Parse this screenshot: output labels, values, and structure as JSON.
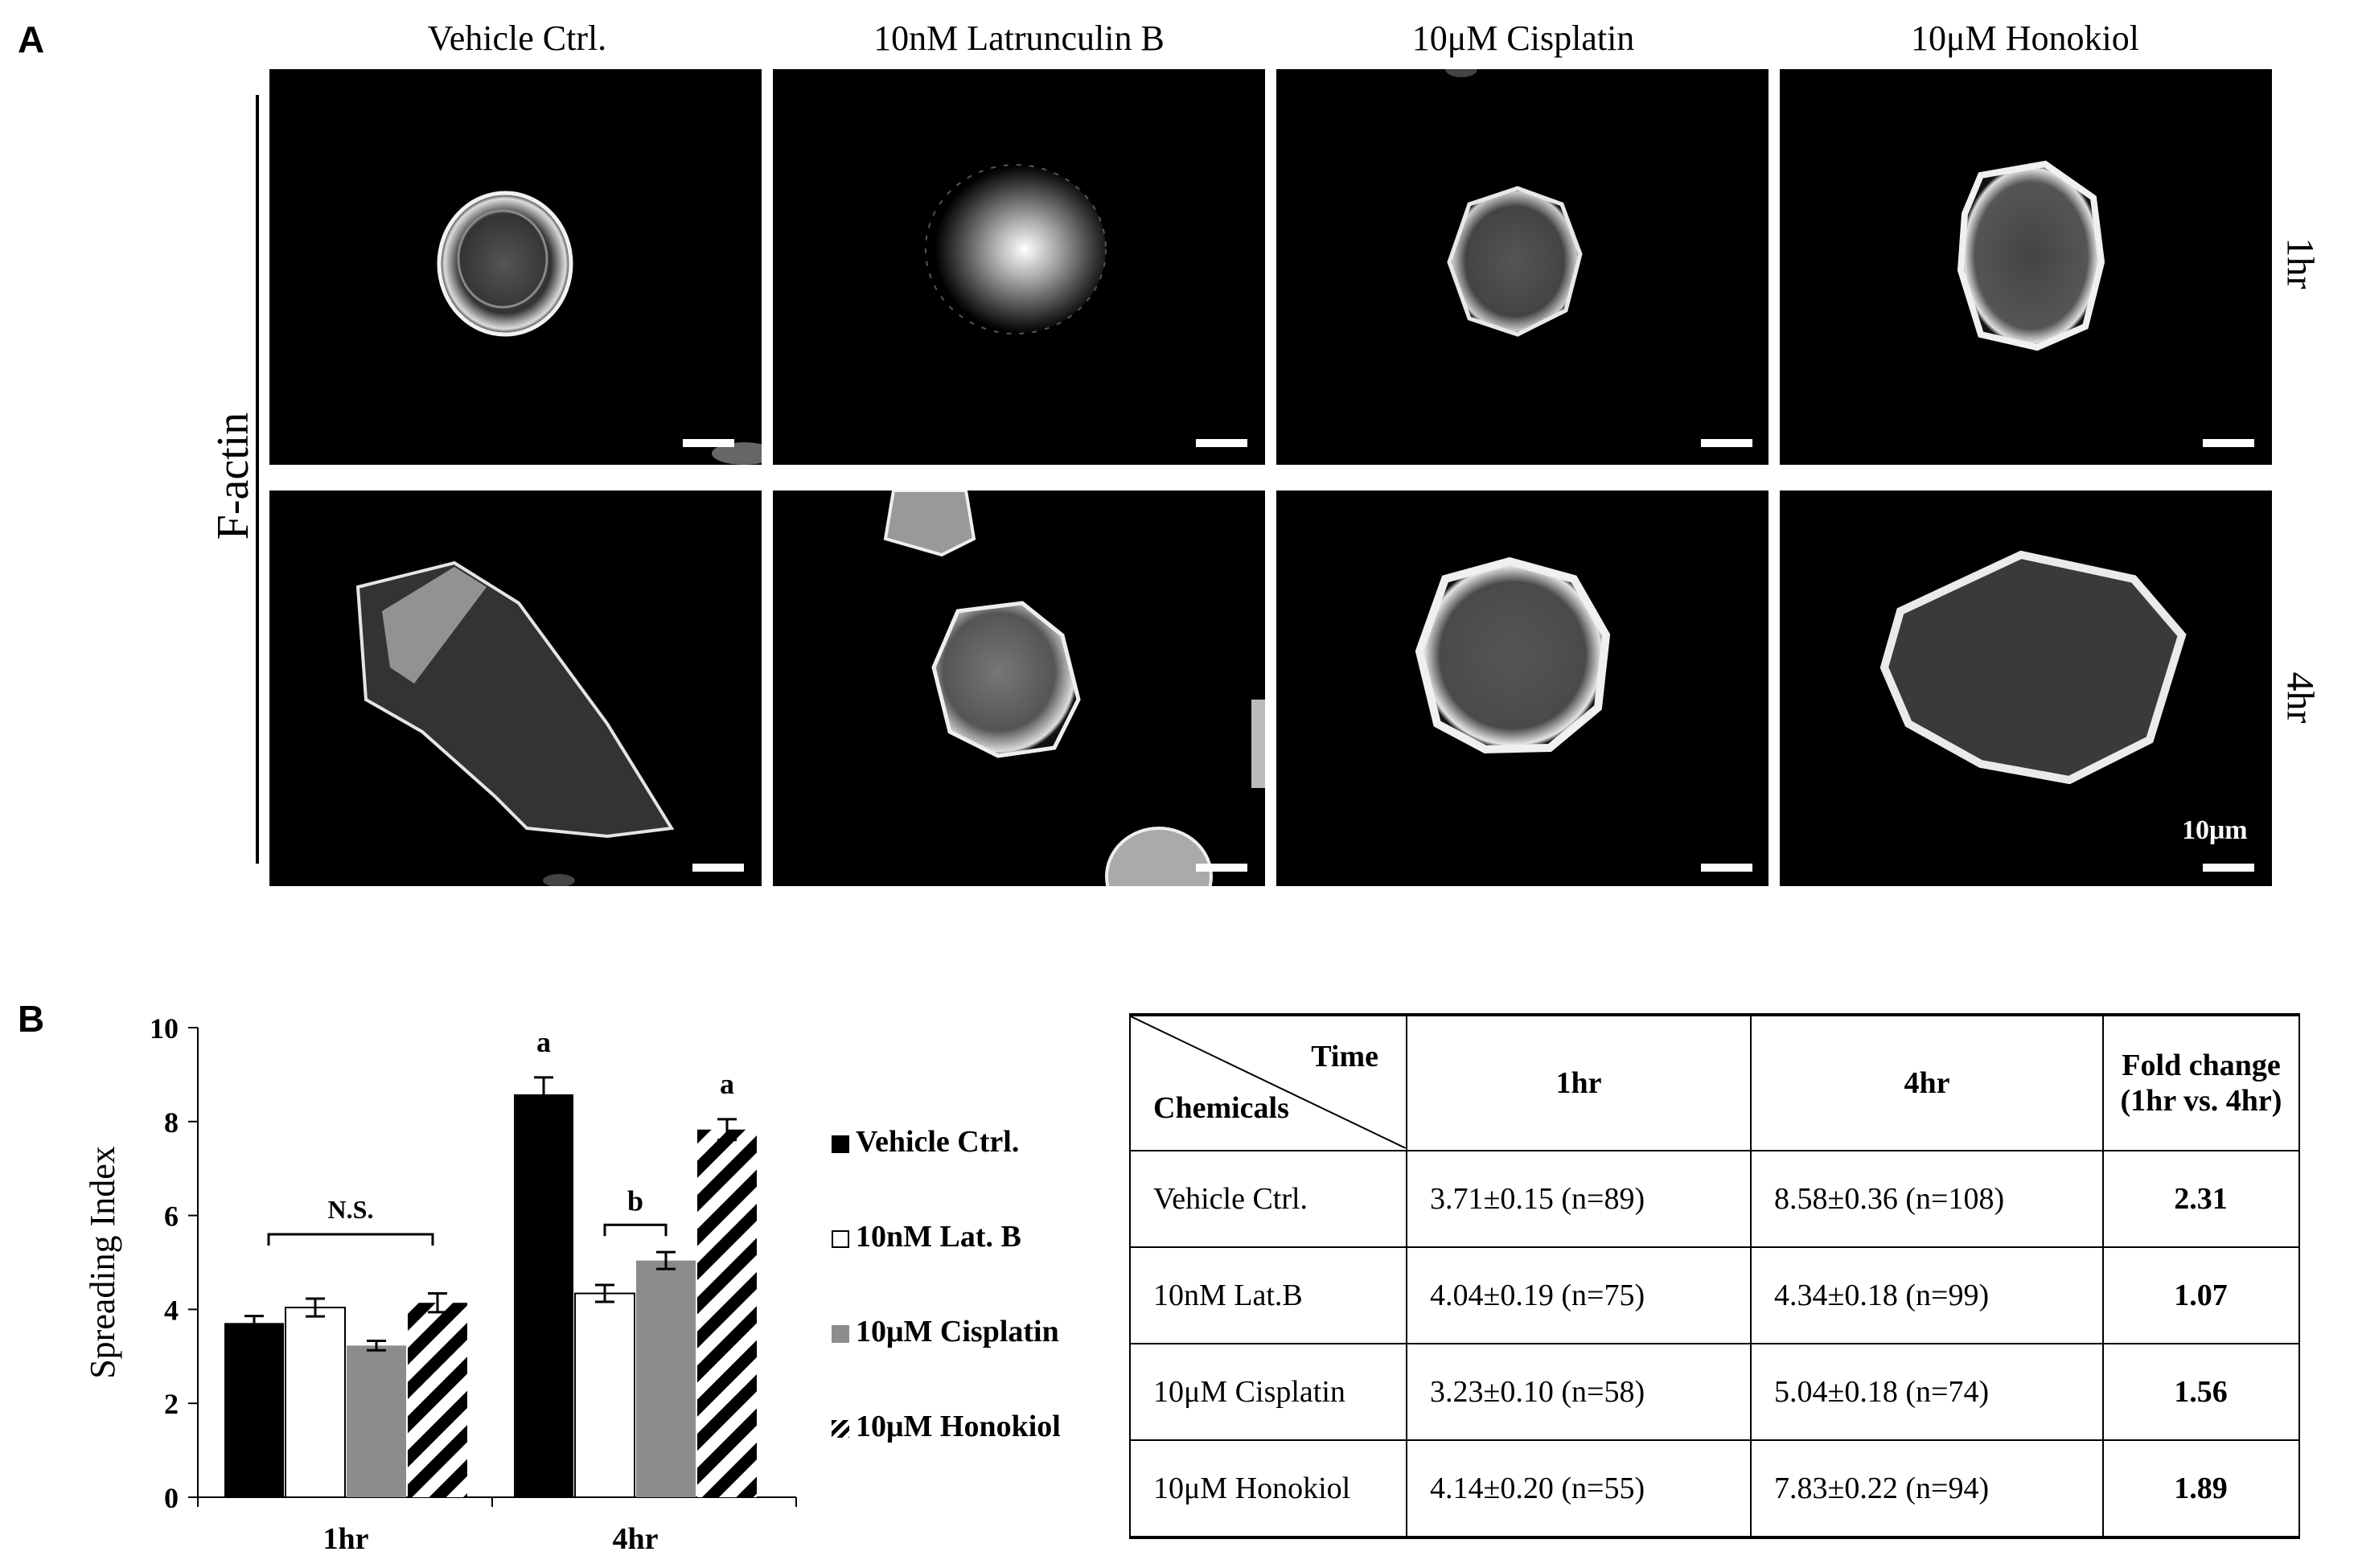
{
  "panel_a": {
    "letter": "A",
    "stain_label": "F-actin",
    "columns": [
      "Vehicle Ctrl.",
      "10nM Latrunculin B",
      "10μM Cisplatin",
      "10μM Honokiol"
    ],
    "rows": [
      "1hr",
      "4hr"
    ],
    "scale_bar_label": "10μm"
  },
  "panel_b": {
    "letter": "B",
    "annotations": {
      "ns": "N.S.",
      "a1": "a",
      "b": "b",
      "a2": "a"
    },
    "legend": [
      "Vehicle Ctrl.",
      "10nM Lat. B",
      "10μM Cisplatin",
      "10μM Honokiol"
    ],
    "table": {
      "header_time": "Time",
      "header_chemicals": "Chemicals",
      "header_1hr": "1hr",
      "header_4hr": "4hr",
      "header_fold_line1": "Fold change",
      "header_fold_line2": "(1hr vs. 4hr)",
      "rows": [
        {
          "chemical": "Vehicle Ctrl.",
          "h1": "3.71±0.15 (n=89)",
          "h4": "8.58±0.36 (n=108)",
          "fold": "2.31"
        },
        {
          "chemical": "10nM Lat.B",
          "h1": "4.04±0.19 (n=75)",
          "h4": "4.34±0.18 (n=99)",
          "fold": "1.07"
        },
        {
          "chemical": "10μM Cisplatin",
          "h1": "3.23±0.10 (n=58)",
          "h4": "5.04±0.18 (n=74)",
          "fold": "1.56"
        },
        {
          "chemical": "10μM Honokiol",
          "h1": "4.14±0.20 (n=55)",
          "h4": "7.83±0.22 (n=94)",
          "fold": "1.89"
        }
      ]
    }
  },
  "chart_data": {
    "type": "bar",
    "title": "",
    "xlabel": "",
    "ylabel": "Spreading Index",
    "ylim": [
      0,
      10
    ],
    "yticks": [
      "0",
      "2",
      "4",
      "6",
      "8",
      "10"
    ],
    "categories": [
      "1hr",
      "4hr"
    ],
    "series": [
      {
        "name": "Vehicle Ctrl.",
        "values": [
          3.71,
          8.58
        ],
        "errors": [
          0.15,
          0.36
        ],
        "fill": "#000000",
        "pattern": "solid"
      },
      {
        "name": "10nM Lat. B",
        "values": [
          4.04,
          4.34
        ],
        "errors": [
          0.19,
          0.18
        ],
        "fill": "#ffffff",
        "pattern": "open"
      },
      {
        "name": "10μM Cisplatin",
        "values": [
          3.23,
          5.04
        ],
        "errors": [
          0.1,
          0.18
        ],
        "fill": "#8c8c8c",
        "pattern": "solid"
      },
      {
        "name": "10μM Honokiol",
        "values": [
          4.14,
          7.83
        ],
        "errors": [
          0.2,
          0.22
        ],
        "fill": "#000000",
        "pattern": "diagonal-stripes"
      }
    ],
    "grid": false,
    "legend_placement": "right"
  }
}
